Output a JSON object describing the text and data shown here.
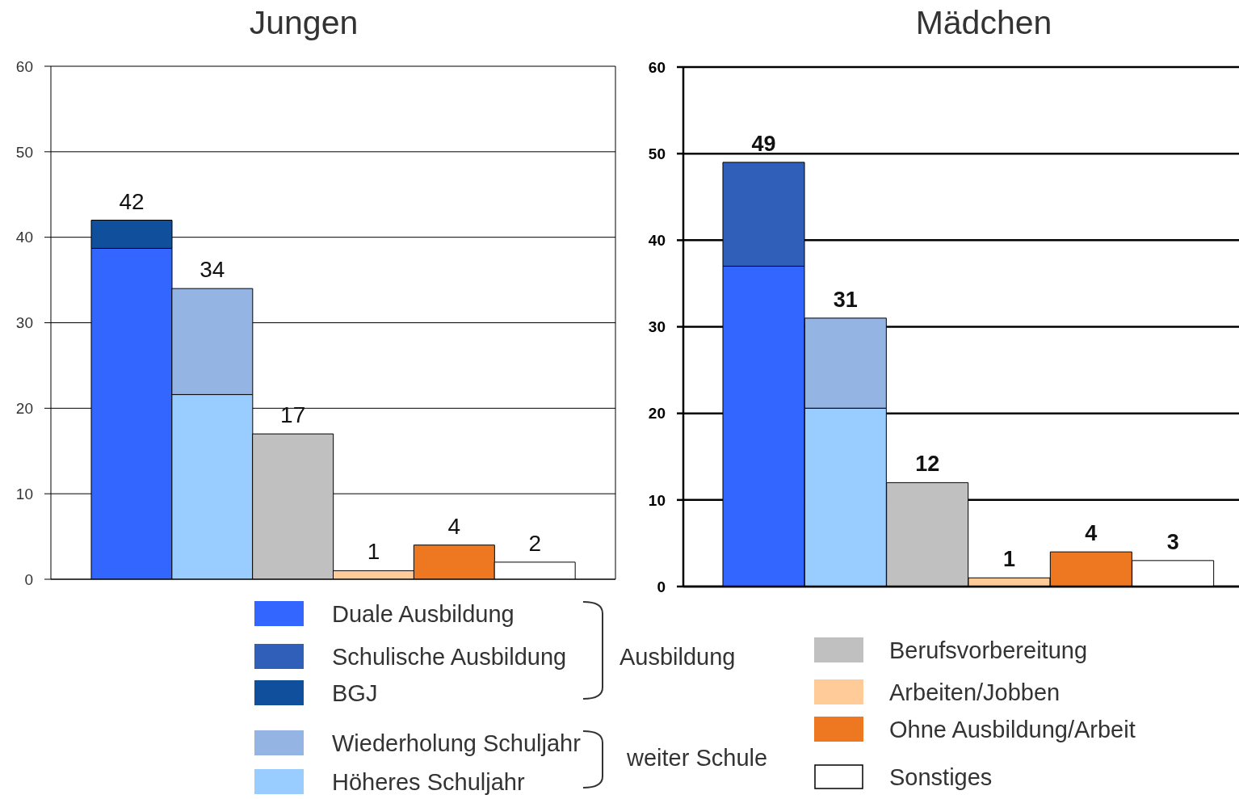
{
  "chart_data": [
    {
      "type": "bar",
      "title": "Jungen",
      "categories": [
        null,
        null,
        null,
        null,
        null,
        null
      ],
      "stacked": true,
      "ylim": [
        0,
        60
      ],
      "yticks": [
        0,
        10,
        20,
        30,
        40,
        50,
        60
      ],
      "grid": "y",
      "legend": "bottom",
      "totals": [
        "42",
        "34",
        "17",
        "1",
        "4",
        "2"
      ],
      "annotations": [
        "Ausbildung",
        "weiter Schule"
      ],
      "series": [
        {
          "name": "Duale Ausbildung",
          "color": "#3366ff",
          "values": [
            38.7,
            null,
            null,
            null,
            null,
            null
          ]
        },
        {
          "name": "Schulische Ausbildung",
          "color": "#2f5fb8",
          "values": [
            null,
            null,
            null,
            null,
            null,
            null
          ]
        },
        {
          "name": "BGJ",
          "color": "#0f4f9c",
          "values": [
            3.3,
            null,
            null,
            null,
            null,
            null
          ]
        },
        {
          "name": "Höheres Schuljahr",
          "color": "#99ccff",
          "values": [
            null,
            21.6,
            null,
            null,
            null,
            null
          ]
        },
        {
          "name": "Wiederholung Schuljahr",
          "color": "#94b4e4",
          "values": [
            null,
            12.4,
            null,
            null,
            null,
            null
          ]
        },
        {
          "color": "#c0c0c0",
          "values": [
            null,
            null,
            17,
            null,
            null,
            null
          ]
        },
        {
          "color": "#ffcc99",
          "values": [
            null,
            null,
            null,
            1,
            null,
            null
          ]
        },
        {
          "color": "#ee7722",
          "values": [
            null,
            null,
            null,
            null,
            4,
            null
          ]
        },
        {
          "color": "#ffffff",
          "values": [
            null,
            null,
            null,
            null,
            null,
            2
          ]
        }
      ]
    },
    {
      "type": "bar",
      "title": "Mädchen",
      "categories": [
        null,
        null,
        null,
        null,
        null,
        null
      ],
      "stacked": true,
      "ylim": [
        0,
        60
      ],
      "yticks": [
        0,
        10,
        20,
        30,
        40,
        50,
        60
      ],
      "grid": "y",
      "legend": "bottom",
      "totals": [
        "49",
        "31",
        "12",
        "1",
        "4",
        "3"
      ],
      "series": [
        {
          "color": "#3366ff",
          "values": [
            37,
            null,
            null,
            null,
            null,
            null
          ]
        },
        {
          "color": "#2f5fb8",
          "values": [
            12,
            null,
            null,
            null,
            null,
            null
          ]
        },
        {
          "color": "#99ccff",
          "values": [
            null,
            20.6,
            null,
            null,
            null,
            null
          ]
        },
        {
          "color": "#94b4e4",
          "values": [
            null,
            10.4,
            null,
            null,
            null,
            null
          ]
        },
        {
          "name": "Berufsvorbereitung",
          "color": "#c0c0c0",
          "values": [
            null,
            null,
            12,
            null,
            null,
            null
          ]
        },
        {
          "name": "Arbeiten/Jobben",
          "color": "#ffcc99",
          "values": [
            null,
            null,
            null,
            1,
            null,
            null
          ]
        },
        {
          "name": "Ohne Ausbildung/Arbeit",
          "color": "#ee7722",
          "values": [
            null,
            null,
            null,
            null,
            4,
            null
          ]
        },
        {
          "name": "Sonstiges",
          "color": "#ffffff",
          "values": [
            null,
            null,
            null,
            null,
            null,
            3
          ]
        }
      ]
    }
  ]
}
